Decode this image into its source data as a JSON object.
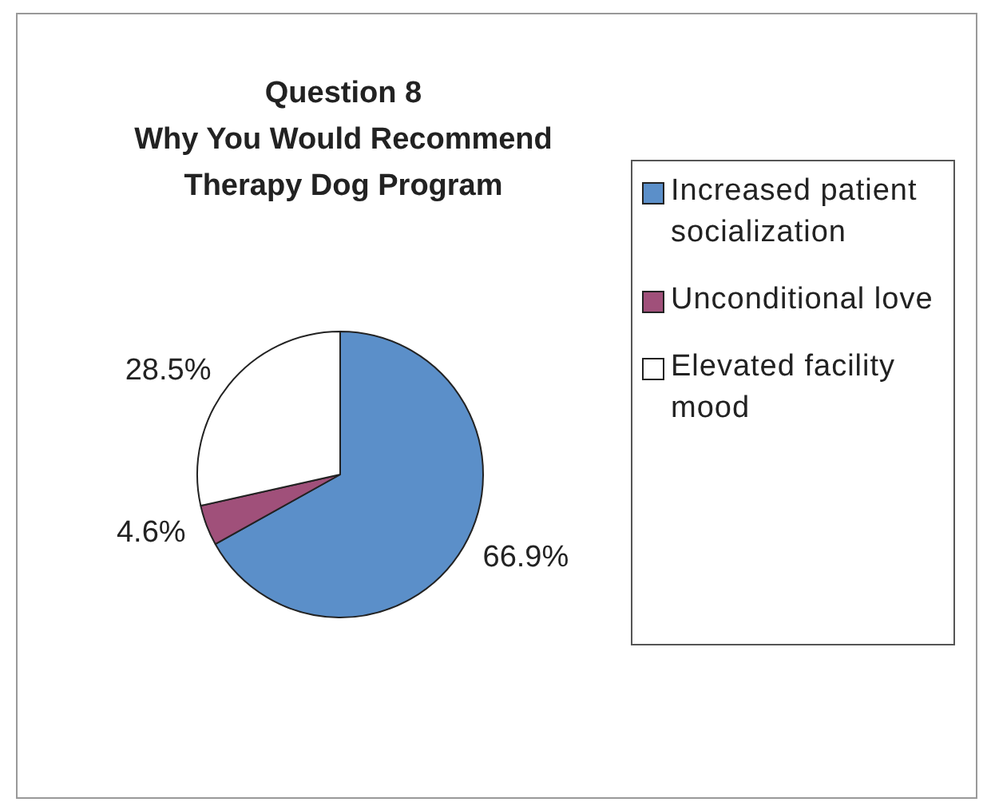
{
  "chart_data": {
    "type": "pie",
    "title": "Question 8\nWhy You Would Recommend\nTherapy Dog Program",
    "categories": [
      "Increased patient socialization",
      "Unconditional love",
      "Elevated facility mood"
    ],
    "values": [
      66.9,
      4.6,
      28.5
    ],
    "colors": [
      "#5b8fc9",
      "#a0507a",
      "#ffffff"
    ],
    "value_labels": [
      "66.9%",
      "4.6%",
      "28.5%"
    ],
    "legend": "right"
  }
}
